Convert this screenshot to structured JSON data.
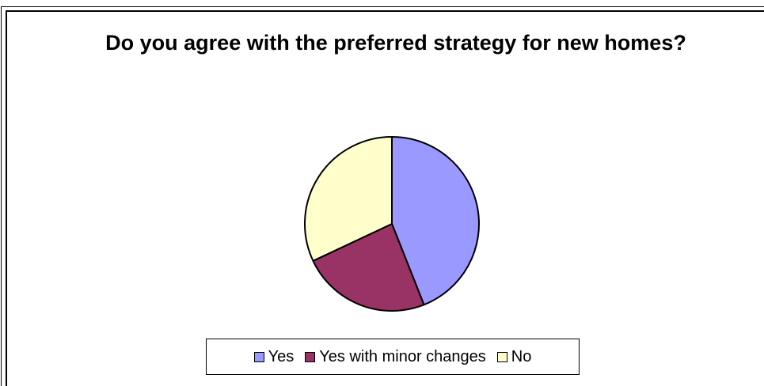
{
  "chart_data": {
    "type": "pie",
    "title": "Do you agree with the preferred strategy for new homes?",
    "categories": [
      "Yes",
      "Yes with minor changes",
      "No"
    ],
    "values": [
      44,
      24,
      32
    ],
    "unit": "percent (estimated)",
    "colors": [
      "#9999FF",
      "#993366",
      "#FFFFCC"
    ],
    "start_angle": "12 o'clock",
    "direction": "clockwise",
    "legend": {
      "placement": "bottom",
      "border": true
    }
  }
}
